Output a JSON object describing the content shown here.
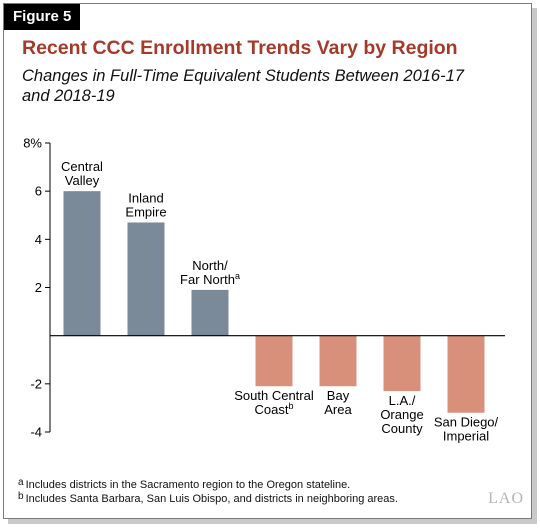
{
  "figure_label": "Figure 5",
  "chart_data": {
    "type": "bar",
    "title": "Recent CCC Enrollment Trends Vary by Region",
    "subtitle": "Changes in Full-Time Equivalent Students Between 2016-17 and 2018-19",
    "categories": [
      {
        "lines": [
          "Central",
          "Valley"
        ],
        "sup": ""
      },
      {
        "lines": [
          "Inland",
          "Empire"
        ],
        "sup": ""
      },
      {
        "lines": [
          "North/",
          "Far North"
        ],
        "sup": "a"
      },
      {
        "lines": [
          "South Central",
          "Coast"
        ],
        "sup": "b"
      },
      {
        "lines": [
          "Bay",
          "Area"
        ],
        "sup": ""
      },
      {
        "lines": [
          "L.A./",
          "Orange",
          "County"
        ],
        "sup": ""
      },
      {
        "lines": [
          "San Diego/",
          "Imperial"
        ],
        "sup": ""
      }
    ],
    "values": [
      6.0,
      4.7,
      1.9,
      -2.1,
      -2.1,
      -2.3,
      -3.2
    ],
    "yticks": [
      {
        "value": 8,
        "label": "8%"
      },
      {
        "value": 6,
        "label": "6"
      },
      {
        "value": 4,
        "label": "4"
      },
      {
        "value": 2,
        "label": "2"
      },
      {
        "value": -2,
        "label": "-2"
      },
      {
        "value": -4,
        "label": "-4"
      }
    ],
    "ylim": [
      -4,
      8
    ],
    "colors": {
      "positive": "#7a8a99",
      "negative": "#d9907a"
    },
    "grid": false
  },
  "footnotes": [
    {
      "mark": "a",
      "text": "Includes districts in the Sacramento region to the Oregon stateline."
    },
    {
      "mark": "b",
      "text": "Includes Santa Barbara, San Luis Obispo, and districts in neighboring areas."
    }
  ],
  "logo": "LAO"
}
